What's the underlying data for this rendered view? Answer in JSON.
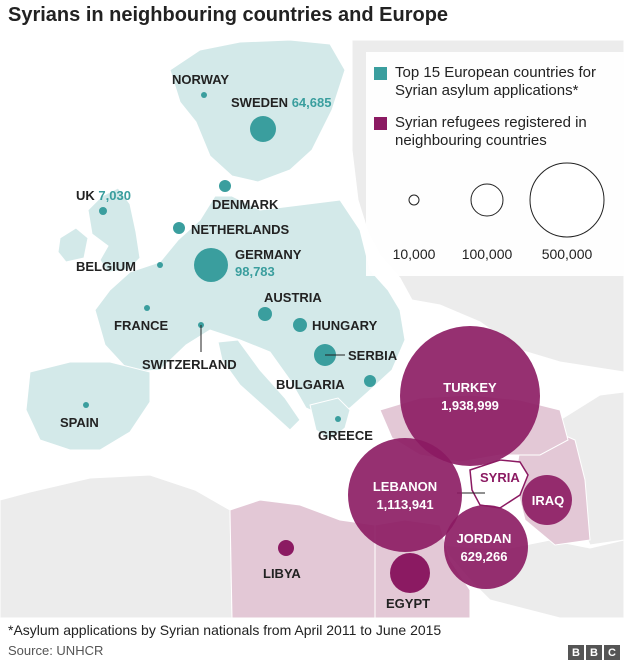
{
  "title": "Syrians in neighbouring countries and Europe",
  "colors": {
    "europe_marker": "#3a9e9e",
    "neighbour_marker": "#8b1a62",
    "europe_land": "#d3e9e9",
    "neighbour_land": "#e3c8d6",
    "other_land": "#ececec",
    "sea": "#ffffff"
  },
  "legend": {
    "europe_label": "Top 15 European countries for Syrian asylum applications*",
    "neighbour_label": "Syrian refugees registered in neighbouring countries",
    "sizes": [
      "10,000",
      "100,000",
      "500,000"
    ]
  },
  "europe": [
    {
      "name": "NORWAY",
      "value": ""
    },
    {
      "name": "SWEDEN",
      "value": "64,685"
    },
    {
      "name": "UK",
      "value": "7,030"
    },
    {
      "name": "DENMARK",
      "value": ""
    },
    {
      "name": "NETHERLANDS",
      "value": ""
    },
    {
      "name": "BELGIUM",
      "value": ""
    },
    {
      "name": "GERMANY",
      "value": "98,783"
    },
    {
      "name": "FRANCE",
      "value": ""
    },
    {
      "name": "SWITZERLAND",
      "value": ""
    },
    {
      "name": "AUSTRIA",
      "value": ""
    },
    {
      "name": "HUNGARY",
      "value": ""
    },
    {
      "name": "SERBIA",
      "value": ""
    },
    {
      "name": "BULGARIA",
      "value": ""
    },
    {
      "name": "SPAIN",
      "value": ""
    },
    {
      "name": "GREECE",
      "value": ""
    }
  ],
  "neighbours": [
    {
      "name": "TURKEY",
      "value": "1,938,999"
    },
    {
      "name": "LEBANON",
      "value": "1,113,941"
    },
    {
      "name": "JORDAN",
      "value": "629,266"
    },
    {
      "name": "IRAQ",
      "value": ""
    },
    {
      "name": "LIBYA",
      "value": ""
    },
    {
      "name": "EGYPT",
      "value": ""
    }
  ],
  "syria_label": "SYRIA",
  "footnote": "*Asylum applications by Syrian nationals from April 2011 to June 2015",
  "source": "Source: UNHCR",
  "bbc_logo": [
    "B",
    "B",
    "C"
  ]
}
